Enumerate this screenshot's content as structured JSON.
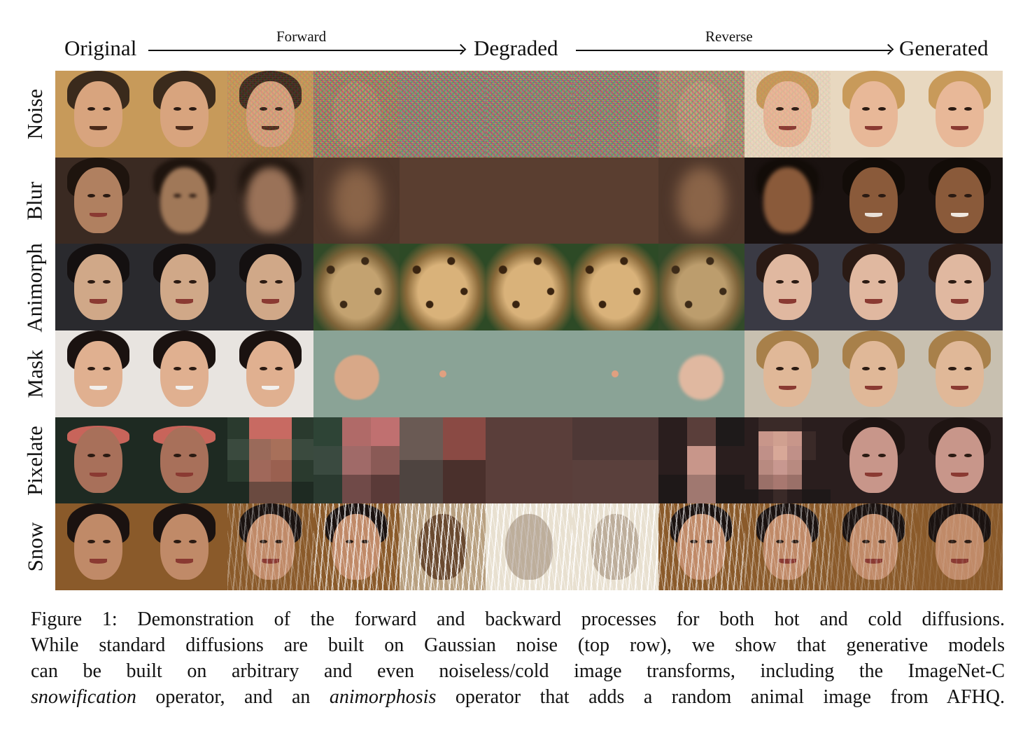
{
  "header": {
    "original": "Original",
    "forward": "Forward",
    "degraded": "Degraded",
    "reverse": "Reverse",
    "generated": "Generated"
  },
  "rows": [
    {
      "label": "Noise"
    },
    {
      "label": "Blur"
    },
    {
      "label": "Animorph"
    },
    {
      "label": "Mask"
    },
    {
      "label": "Pixelate"
    },
    {
      "label": "Snow"
    }
  ],
  "caption": {
    "line1": "Figure 1: Demonstration of the forward and backward processes for both hot and cold diffusions.",
    "line2": "While standard diffusions are built on Gaussian noise (top row), we show that generative models",
    "line3": "can be built on arbitrary and even noiseless/cold image transforms, including the ImageNet-C",
    "line4_em1": "snowification",
    "line4_mid": " operator, and an ",
    "line4_em2": "animorphosis",
    "line4_end": " operator that adds a random animal image from AFHQ."
  }
}
